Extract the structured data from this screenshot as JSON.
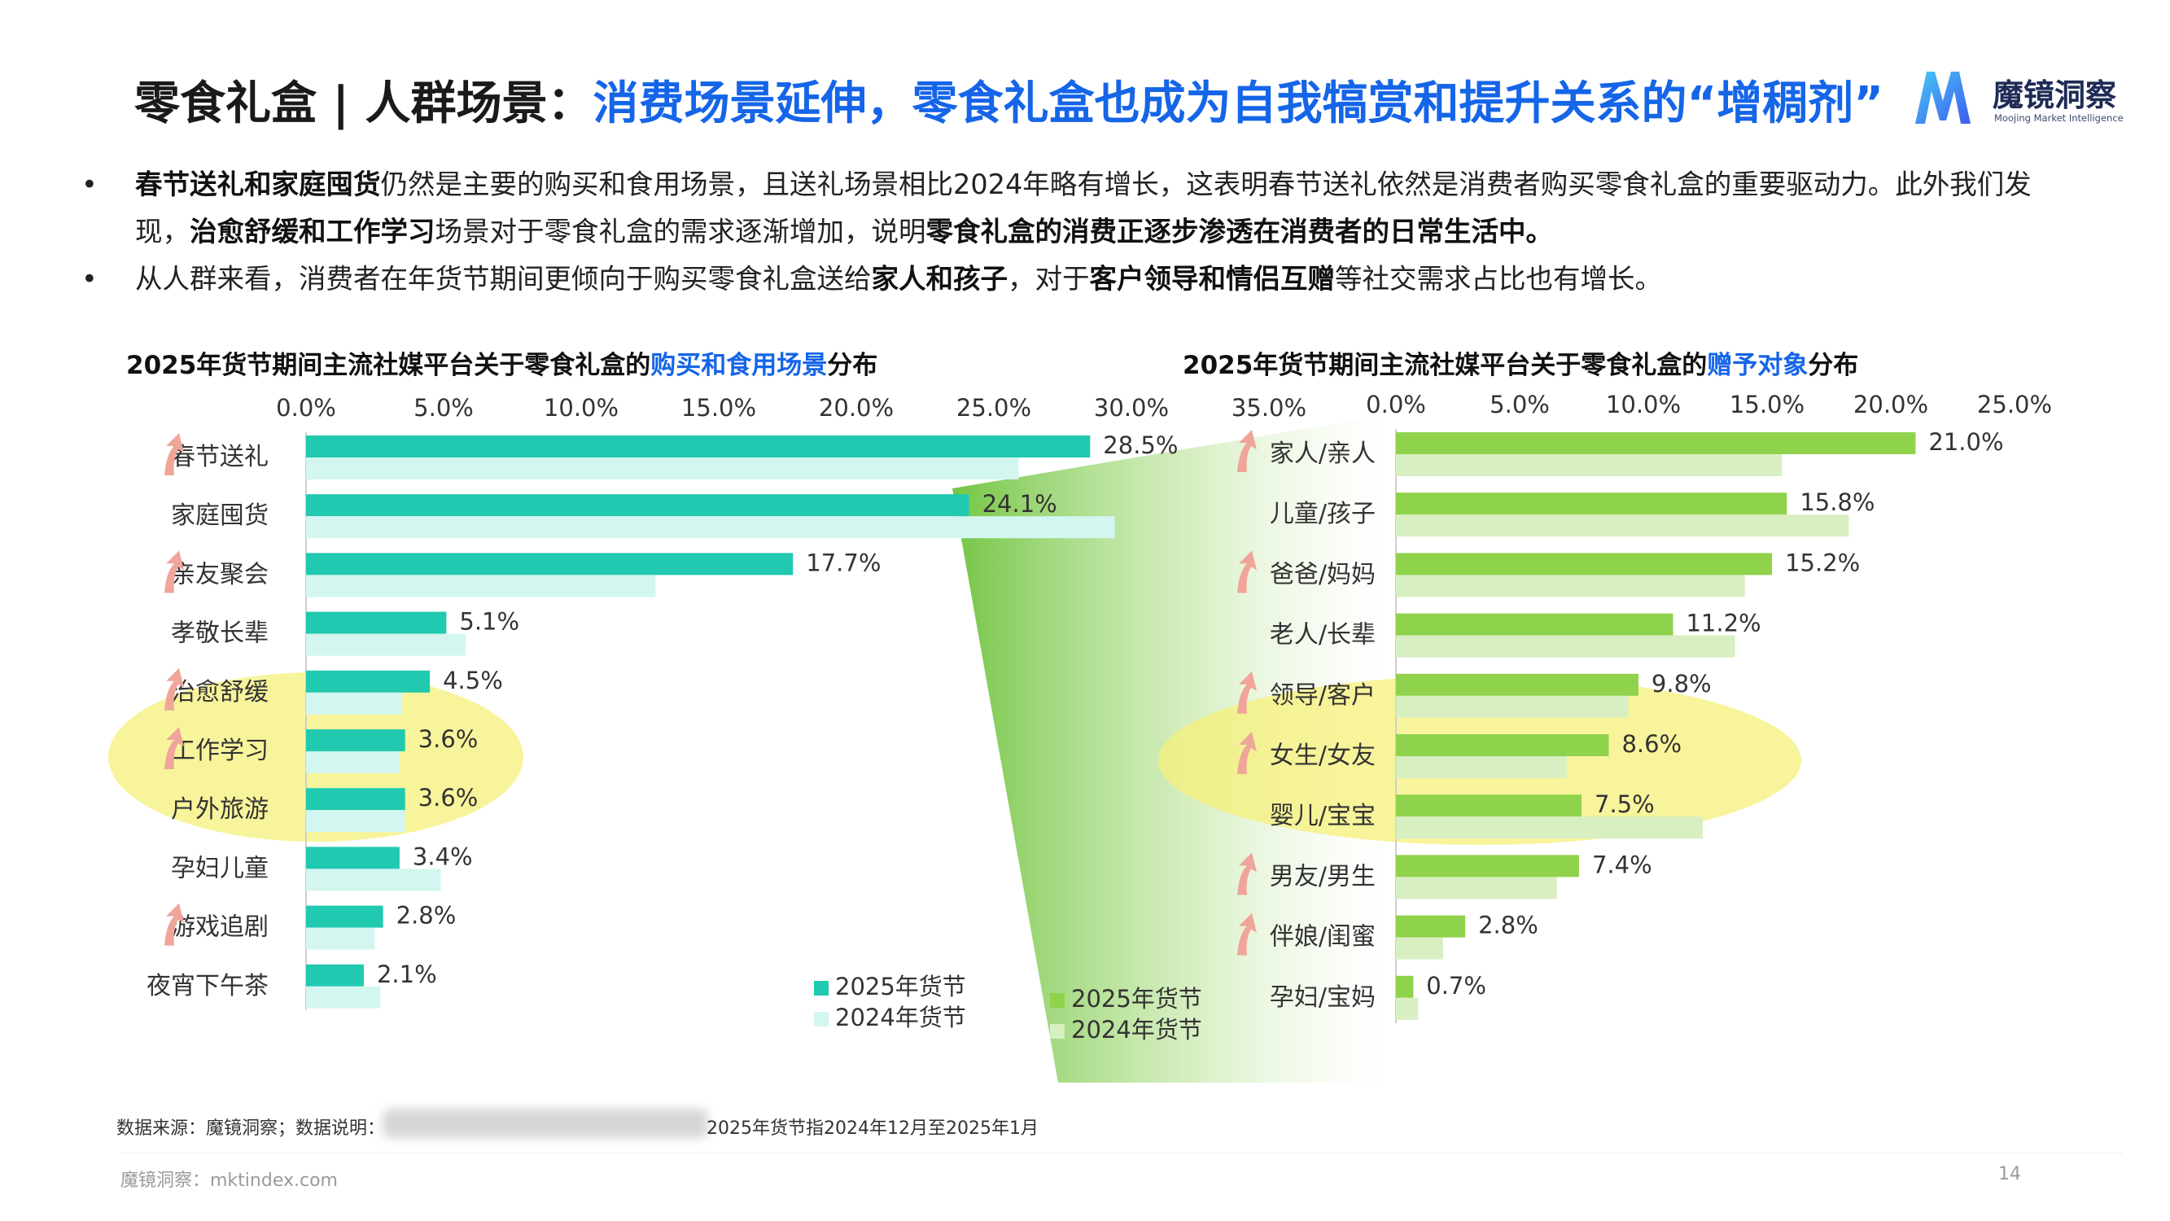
{
  "header": {
    "title_part1": "零食礼盒 | 人群场景：",
    "title_part2": "消费场景延伸，零食礼盒也成为自我犒赏和提升关系的“增稠剂”",
    "logo_name": "魔镜洞察",
    "logo_sub": "Moojing Market Intelligence"
  },
  "bullets": [
    {
      "dot": "•",
      "segments": [
        {
          "text": "春节送礼和家庭囤货",
          "bold": true
        },
        {
          "text": "仍然是主要的购买和食用场景，且送礼场景相比2024年略有增长，这表明春节送礼依然是消费者购买零食礼盒的重要驱动力。此外我们发现，",
          "bold": false
        },
        {
          "text": "治愈舒缓和工作学习",
          "bold": true
        },
        {
          "text": "场景对于零食礼盒的需求逐渐增加，说明",
          "bold": false
        },
        {
          "text": "零食礼盒的消费正逐步渗透在消费者的日常生活中。",
          "bold": true
        }
      ]
    },
    {
      "dot": "•",
      "segments": [
        {
          "text": "从人群来看，消费者在年货节期间更倾向于购买零食礼盒送给",
          "bold": false
        },
        {
          "text": "家人和孩子",
          "bold": true
        },
        {
          "text": "，对于",
          "bold": false
        },
        {
          "text": "客户领导和情侣互赠",
          "bold": true
        },
        {
          "text": "等社交需求占比也有增长。",
          "bold": false
        }
      ]
    }
  ],
  "left_chart_title": {
    "prefix": "2025年货节期间主流社媒平台关于零食礼盒的",
    "highlight": "购买和食用场景",
    "suffix": "分布"
  },
  "right_chart_title": {
    "prefix": "2025年货节期间主流社媒平台关于零食礼盒的",
    "highlight": "赠予对象",
    "suffix": "分布"
  },
  "colors": {
    "left_2025": "#20c9b0",
    "left_2024": "#d3f6f0",
    "right_2025": "#8fd24c",
    "right_2024": "#d7efc1",
    "arrow": "#f0a59b",
    "highlight_ellipse": "#f6f07a",
    "title_accent": "#1565e8"
  },
  "chart_data": [
    {
      "type": "bar",
      "orientation": "horizontal",
      "x_ticks": [
        "0.0%",
        "5.0%",
        "10.0%",
        "15.0%",
        "20.0%",
        "25.0%",
        "30.0%",
        "35.0%"
      ],
      "xlim": [
        0,
        35
      ],
      "categories": [
        "春节送礼",
        "家庭囤货",
        "亲友聚会",
        "孝敬长辈",
        "治愈舒缓",
        "工作学习",
        "户外旅游",
        "孕妇儿童",
        "游戏追剧",
        "夜宵下午茶"
      ],
      "growth_arrow": [
        true,
        false,
        true,
        false,
        true,
        true,
        false,
        false,
        true,
        false
      ],
      "highlighted": [
        "治愈舒缓",
        "工作学习"
      ],
      "series": [
        {
          "name": "2025年货节",
          "values": [
            28.5,
            24.1,
            17.7,
            5.1,
            4.5,
            3.6,
            3.6,
            3.4,
            2.8,
            2.1
          ]
        },
        {
          "name": "2024年货节",
          "values": [
            25.9,
            29.4,
            12.7,
            5.8,
            3.5,
            3.4,
            3.6,
            4.9,
            2.5,
            2.7
          ]
        }
      ],
      "value_labels": [
        "28.5%",
        "24.1%",
        "17.7%",
        "5.1%",
        "4.5%",
        "3.6%",
        "3.6%",
        "3.4%",
        "2.8%",
        "2.1%"
      ],
      "legend_position": "bottom-right"
    },
    {
      "type": "bar",
      "orientation": "horizontal",
      "x_ticks": [
        "0.0%",
        "5.0%",
        "10.0%",
        "15.0%",
        "20.0%",
        "25.0%"
      ],
      "xlim": [
        0,
        25
      ],
      "categories": [
        "家人/亲人",
        "儿童/孩子",
        "爸爸/妈妈",
        "老人/长辈",
        "领导/客户",
        "女生/女友",
        "婴儿/宝宝",
        "男友/男生",
        "伴娘/闺蜜",
        "孕妇/宝妈"
      ],
      "growth_arrow": [
        true,
        false,
        true,
        false,
        true,
        true,
        false,
        true,
        true,
        false
      ],
      "highlighted": [
        "领导/客户",
        "女生/女友"
      ],
      "series": [
        {
          "name": "2025年货节",
          "values": [
            21.0,
            15.8,
            15.2,
            11.2,
            9.8,
            8.6,
            7.5,
            7.4,
            2.8,
            0.7
          ]
        },
        {
          "name": "2024年货节",
          "values": [
            15.6,
            18.3,
            14.1,
            13.7,
            9.4,
            6.9,
            12.4,
            6.5,
            1.9,
            0.9
          ]
        }
      ],
      "value_labels": [
        "21.0%",
        "15.8%",
        "15.2%",
        "11.2%",
        "9.8%",
        "8.6%",
        "7.5%",
        "7.4%",
        "2.8%",
        "0.7%"
      ],
      "legend_position": "bottom-right"
    }
  ],
  "footer": {
    "source_label": "数据来源：魔镜洞察；数据说明：",
    "source_note": "2025年货节指2024年12月至2025年1月",
    "site": "魔镜洞察：mktindex.com",
    "page": "14"
  }
}
